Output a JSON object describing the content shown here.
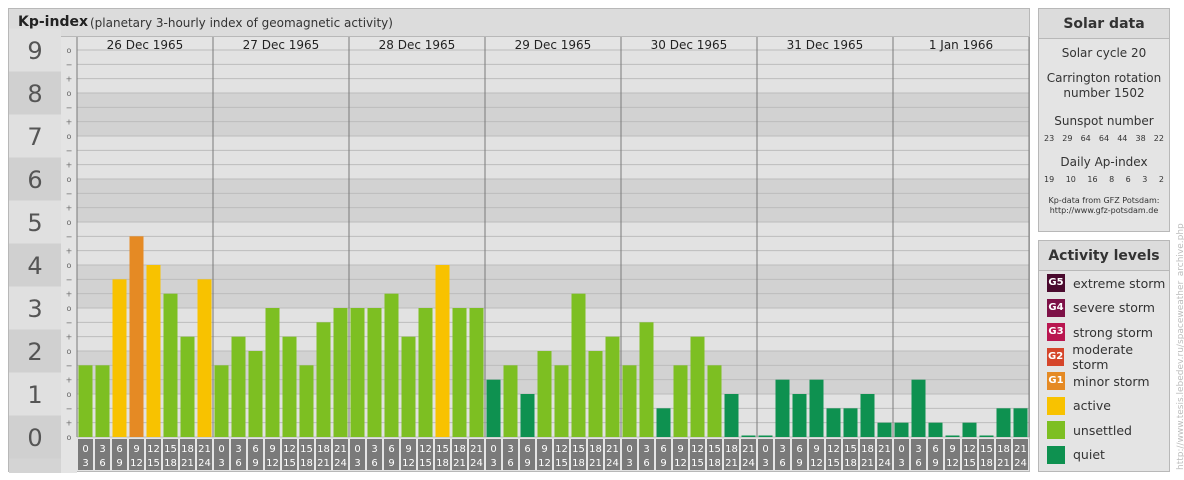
{
  "header": {
    "title": "Kp-index",
    "subtitle": "(planetary 3-hourly index of geomagnetic activity)"
  },
  "chart_data": {
    "type": "bar",
    "title": "Kp-index",
    "subtitle": "(planetary 3-hourly index of geomagnetic activity)",
    "ylim": [
      0,
      9
    ],
    "y_ticks": [
      "0",
      "1",
      "2",
      "3",
      "4",
      "5",
      "6",
      "7",
      "8",
      "9"
    ],
    "y_minor_ticks": [
      "+",
      "o",
      "−"
    ],
    "days": [
      "26 Dec 1965",
      "27 Dec 1965",
      "28 Dec 1965",
      "29 Dec 1965",
      "30 Dec 1965",
      "31 Dec 1965",
      "1 Jan 1966"
    ],
    "interval_start_hours": [
      "0",
      "3",
      "6",
      "9",
      "12",
      "15",
      "18",
      "21"
    ],
    "interval_end_hours": [
      "3",
      "6",
      "9",
      "12",
      "15",
      "18",
      "21",
      "24"
    ],
    "values": [
      [
        1.667,
        1.667,
        3.667,
        4.667,
        4.0,
        3.333,
        2.333,
        3.667
      ],
      [
        1.667,
        2.333,
        2.0,
        3.0,
        2.333,
        1.667,
        2.667,
        3.0
      ],
      [
        3.0,
        3.0,
        3.333,
        2.333,
        3.0,
        4.0,
        3.0,
        3.0
      ],
      [
        1.333,
        1.667,
        1.0,
        2.0,
        1.667,
        3.333,
        2.0,
        2.333
      ],
      [
        1.667,
        2.667,
        0.667,
        1.667,
        2.333,
        1.667,
        1.0,
        0.0
      ],
      [
        0.0,
        1.333,
        1.0,
        1.333,
        0.667,
        0.667,
        1.0,
        0.333
      ],
      [
        0.333,
        1.333,
        0.333,
        0.0,
        0.333,
        0.0,
        0.667,
        0.667
      ]
    ],
    "grid": true,
    "legend_placement": "right"
  },
  "activity_colors": {
    "quiet": "#0e9150",
    "unsettled": "#7dbf22",
    "active": "#f8c200",
    "minor_storm": "#e58a24",
    "moderate_storm": "#d5452a",
    "strong_storm": "#b91650",
    "severe_storm": "#7d1147",
    "extreme_storm": "#4a0a2e"
  },
  "solar": {
    "title": "Solar data",
    "cycle": "Solar cycle 20",
    "carrington": "Carrington rotation number 1502",
    "sunspot_label": "Sunspot number",
    "sunspot_values": [
      "23",
      "29",
      "64",
      "64",
      "44",
      "38",
      "22"
    ],
    "ap_label": "Daily Ap-index",
    "ap_values": [
      "19",
      "10",
      "16",
      "8",
      "6",
      "3",
      "2"
    ],
    "note_line1": "Kp-data from GFZ Potsdam:",
    "note_line2": "http://www.gfz-potsdam.de"
  },
  "levels": {
    "title": "Activity levels",
    "items": [
      {
        "code": "G5",
        "label": "extreme storm",
        "color": "#4a0a2e"
      },
      {
        "code": "G4",
        "label": "severe storm",
        "color": "#7d1147"
      },
      {
        "code": "G3",
        "label": "strong storm",
        "color": "#b91650"
      },
      {
        "code": "G2",
        "label": "moderate storm",
        "color": "#d5452a"
      },
      {
        "code": "G1",
        "label": "minor storm",
        "color": "#e58a24"
      },
      {
        "code": "",
        "label": "active",
        "color": "#f8c200"
      },
      {
        "code": "",
        "label": "unsettled",
        "color": "#7dbf22"
      },
      {
        "code": "",
        "label": "quiet",
        "color": "#0e9150"
      }
    ]
  },
  "watermark": "http://www.tesis.lebedev.ru/spaceweather_archive.php"
}
